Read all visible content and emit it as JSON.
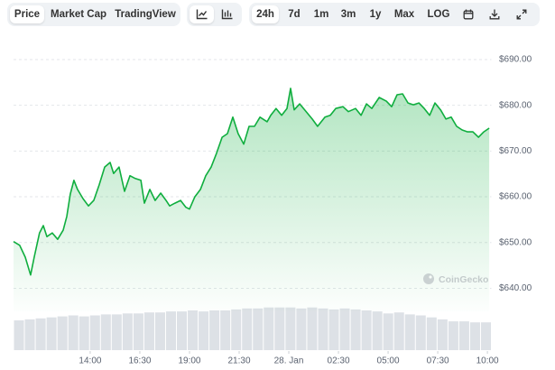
{
  "toolbar": {
    "views": [
      "Price",
      "Market Cap",
      "TradingView"
    ],
    "ranges": [
      "24h",
      "7d",
      "1m",
      "3m",
      "1y",
      "Max",
      "LOG"
    ]
  },
  "chart_data": {
    "type": "area",
    "watermark": "CoinGecko",
    "color": "#0fae3e",
    "x": [
      10.14,
      10.45,
      10.73,
      11.0,
      11.18,
      11.45,
      11.64,
      11.82,
      12.09,
      12.36,
      12.64,
      12.82,
      13.0,
      13.18,
      13.36,
      13.64,
      13.91,
      14.18,
      14.45,
      14.73,
      15.0,
      15.18,
      15.45,
      15.73,
      16.0,
      16.27,
      16.55,
      16.73,
      17.0,
      17.27,
      17.55,
      17.82,
      18.0,
      18.27,
      18.55,
      18.82,
      19.0,
      19.27,
      19.55,
      19.82,
      20.09,
      20.36,
      20.64,
      20.91,
      21.18,
      21.45,
      21.73,
      22.0,
      22.27,
      22.55,
      22.91,
      23.09,
      23.36,
      23.64,
      23.91,
      24.09,
      24.27,
      24.55,
      24.91,
      25.18,
      25.45,
      25.82,
      26.09,
      26.36,
      26.73,
      27.0,
      27.36,
      27.64,
      27.91,
      28.18,
      28.55,
      28.91,
      29.18,
      29.45,
      29.73,
      30.0,
      30.27,
      30.55,
      30.82,
      31.09,
      31.36,
      31.64,
      31.91,
      32.18,
      32.45,
      32.73,
      33.0,
      33.27,
      33.55,
      33.82,
      34.09
    ],
    "values": [
      650.2,
      649.4,
      646.8,
      642.9,
      646.8,
      652.1,
      653.7,
      651.3,
      652.1,
      650.7,
      652.7,
      655.7,
      660.6,
      663.6,
      661.6,
      659.6,
      658.0,
      659.2,
      662.6,
      666.5,
      667.5,
      665.1,
      666.5,
      661.2,
      664.6,
      664.0,
      663.6,
      658.6,
      661.6,
      659.2,
      660.8,
      659.2,
      658.0,
      658.6,
      659.2,
      657.7,
      657.3,
      660.0,
      661.6,
      664.6,
      666.5,
      669.5,
      673.0,
      673.8,
      677.4,
      673.8,
      671.5,
      675.4,
      675.4,
      677.4,
      676.4,
      677.8,
      679.3,
      677.8,
      679.3,
      683.7,
      679.0,
      680.3,
      678.4,
      677.0,
      675.4,
      677.4,
      677.8,
      679.3,
      679.7,
      678.6,
      679.3,
      677.8,
      680.3,
      679.3,
      681.7,
      680.9,
      679.7,
      682.3,
      682.5,
      680.5,
      680.1,
      680.5,
      679.3,
      677.8,
      680.5,
      679.0,
      677.0,
      677.4,
      675.4,
      674.6,
      674.2,
      674.2,
      673.0,
      674.2,
      675.0
    ],
    "xlim": [
      10.14,
      34.2
    ],
    "xticks": [
      {
        "value": 14,
        "label": "14:00"
      },
      {
        "value": 16.5,
        "label": "16:30"
      },
      {
        "value": 19,
        "label": "19:00"
      },
      {
        "value": 21.5,
        "label": "21:30"
      },
      {
        "value": 24,
        "label": "28. Jan"
      },
      {
        "value": 26.5,
        "label": "02:30"
      },
      {
        "value": 29,
        "label": "05:00"
      },
      {
        "value": 31.5,
        "label": "07:30"
      },
      {
        "value": 34,
        "label": "10:00"
      }
    ],
    "ylim": [
      635,
      695
    ],
    "yticks": [
      {
        "value": 640,
        "label": "$640.00"
      },
      {
        "value": 650,
        "label": "$650.00"
      },
      {
        "value": 660,
        "label": "$660.00"
      },
      {
        "value": 670,
        "label": "$670.00"
      },
      {
        "value": 680,
        "label": "$680.00"
      },
      {
        "value": 690,
        "label": "$690.00"
      }
    ],
    "grid": true,
    "volume": {
      "color": "#dde1e6",
      "ylim": [
        0,
        100
      ],
      "values": [
        60,
        62,
        64,
        66,
        68,
        70,
        68,
        70,
        72,
        72,
        74,
        74,
        76,
        76,
        78,
        78,
        80,
        78,
        80,
        80,
        82,
        84,
        84,
        86,
        86,
        86,
        84,
        86,
        84,
        82,
        84,
        82,
        80,
        78,
        74,
        76,
        72,
        70,
        66,
        62,
        58,
        58,
        56,
        56
      ]
    }
  }
}
